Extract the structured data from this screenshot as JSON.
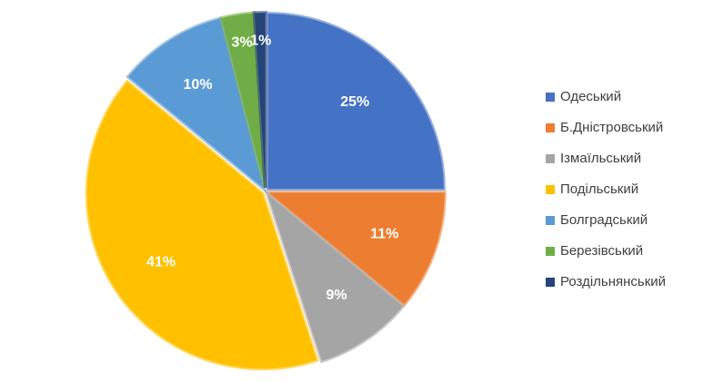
{
  "chart_data": {
    "type": "pie",
    "categories": [
      "Одеський",
      "Б.Дністровський",
      "Ізмаїльський",
      "Подільський",
      "Болградський",
      "Березівський",
      "Роздільнянський"
    ],
    "values": [
      25,
      11,
      9,
      41,
      10,
      3,
      1
    ],
    "value_labels": [
      "25%",
      "11%",
      "9%",
      "41%",
      "10%",
      "3%",
      "1%"
    ],
    "colors": [
      "#4472c4",
      "#ed7d31",
      "#a5a5a5",
      "#ffc000",
      "#5b9bd5",
      "#70ad47",
      "#264478"
    ],
    "legend": "right"
  }
}
